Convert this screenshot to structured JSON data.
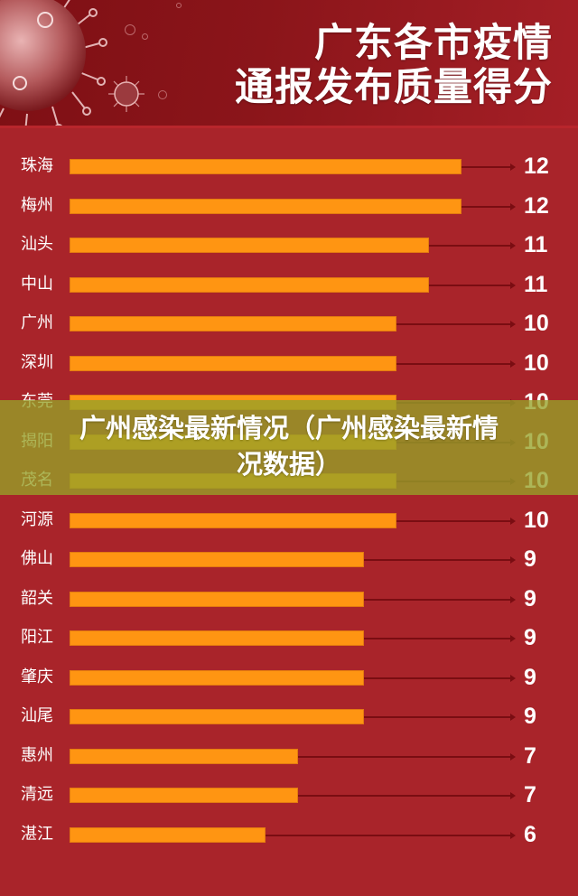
{
  "header": {
    "title_line1": "广东各市疫情",
    "title_line2": "通报发布质量得分"
  },
  "overlay": {
    "line1": "广州感染最新情况（广州感染最新情",
    "line2": "况数据）"
  },
  "colors": {
    "background": "#a9242a",
    "header_bg": "#8b151a",
    "bar": "#ff9512",
    "arrow": "#7a0d12",
    "overlay": "#96a228"
  },
  "chart_data": {
    "type": "bar",
    "orientation": "horizontal",
    "title": "广东各市疫情通报发布质量得分",
    "xlabel": "",
    "ylabel": "",
    "grid": false,
    "legend": null,
    "xlim": [
      0,
      12
    ],
    "categories": [
      "珠海",
      "梅州",
      "汕头",
      "中山",
      "广州",
      "深圳",
      "东莞",
      "揭阳",
      "茂名",
      "河源",
      "佛山",
      "韶关",
      "阳江",
      "肇庆",
      "汕尾",
      "惠州",
      "清远",
      "湛江"
    ],
    "values": [
      12,
      12,
      11,
      11,
      10,
      10,
      10,
      10,
      10,
      10,
      9,
      9,
      9,
      9,
      9,
      7,
      7,
      6
    ],
    "value_labels": [
      "12",
      "12",
      "11",
      "11",
      "10",
      "10",
      "10",
      "10",
      "10",
      "10",
      "9",
      "9",
      "9",
      "9",
      "9",
      "7",
      "7",
      "6"
    ]
  }
}
